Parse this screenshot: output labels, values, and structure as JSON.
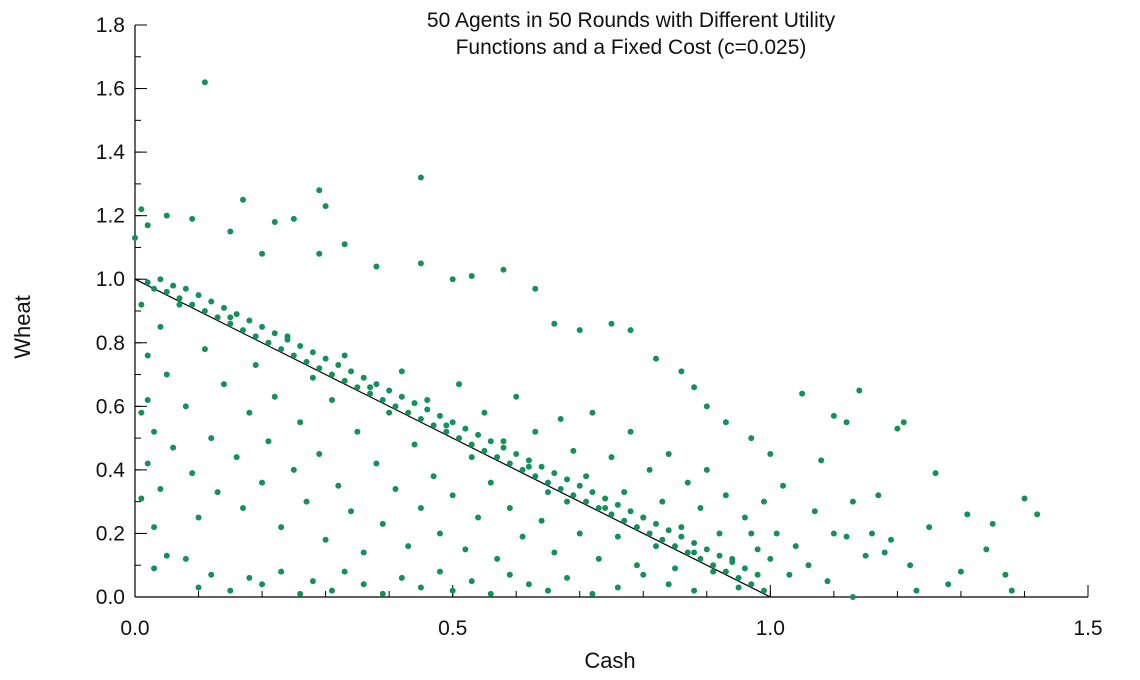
{
  "chart_data": {
    "type": "scatter",
    "title_lines": [
      "50 Agents in 50 Rounds with Different Utility",
      "Functions and a Fixed Cost (c=0.025)"
    ],
    "xlabel": "Cash",
    "ylabel": "Wheat",
    "xlim": [
      0,
      1.5
    ],
    "ylim": [
      0,
      1.8
    ],
    "x_ticks": [
      {
        "v": 0,
        "label": "0.0"
      },
      {
        "v": 0.5,
        "label": "0.5"
      },
      {
        "v": 1.0,
        "label": "1.0"
      },
      {
        "v": 1.5,
        "label": "1.5"
      }
    ],
    "y_ticks": [
      {
        "v": 0,
        "label": "0.0"
      },
      {
        "v": 0.2,
        "label": "0.2"
      },
      {
        "v": 0.4,
        "label": "0.4"
      },
      {
        "v": 0.6,
        "label": "0.6"
      },
      {
        "v": 0.8,
        "label": "0.8"
      },
      {
        "v": 1.0,
        "label": "1.0"
      },
      {
        "v": 1.2,
        "label": "1.2"
      },
      {
        "v": 1.4,
        "label": "1.4"
      },
      {
        "v": 1.6,
        "label": "1.6"
      },
      {
        "v": 1.8,
        "label": "1.8"
      }
    ],
    "x_minor_step": 0.1,
    "y_minor_step": 0.1,
    "grid": false,
    "point_color": "#14905a",
    "line_color": "#000000",
    "reference_line": [
      [
        0,
        1.0
      ],
      [
        1.0,
        0.0
      ]
    ],
    "points": [
      [
        0.11,
        1.62
      ],
      [
        0.45,
        1.32
      ],
      [
        0.29,
        1.28
      ],
      [
        0.3,
        1.23
      ],
      [
        0.17,
        1.25
      ],
      [
        0.01,
        1.22
      ],
      [
        0.0,
        1.13
      ],
      [
        0.02,
        1.17
      ],
      [
        0.05,
        1.2
      ],
      [
        0.09,
        1.19
      ],
      [
        0.22,
        1.18
      ],
      [
        0.25,
        1.19
      ],
      [
        0.33,
        1.11
      ],
      [
        0.15,
        1.15
      ],
      [
        0.2,
        1.08
      ],
      [
        0.29,
        1.08
      ],
      [
        0.38,
        1.04
      ],
      [
        0.45,
        1.05
      ],
      [
        0.5,
        1.0
      ],
      [
        0.53,
        1.01
      ],
      [
        0.58,
        1.03
      ],
      [
        0.63,
        0.97
      ],
      [
        0.66,
        0.86
      ],
      [
        0.7,
        0.84
      ],
      [
        0.75,
        0.86
      ],
      [
        0.78,
        0.84
      ],
      [
        0.82,
        0.75
      ],
      [
        0.86,
        0.71
      ],
      [
        0.88,
        0.66
      ],
      [
        0.9,
        0.6
      ],
      [
        0.93,
        0.55
      ],
      [
        0.97,
        0.5
      ],
      [
        1.0,
        0.45
      ],
      [
        1.05,
        0.64
      ],
      [
        1.08,
        0.43
      ],
      [
        1.1,
        0.57
      ],
      [
        1.12,
        0.55
      ],
      [
        1.14,
        0.65
      ],
      [
        1.17,
        0.32
      ],
      [
        1.2,
        0.53
      ],
      [
        1.21,
        0.55
      ],
      [
        1.26,
        0.39
      ],
      [
        1.31,
        0.26
      ],
      [
        1.35,
        0.23
      ],
      [
        1.37,
        0.07
      ],
      [
        1.4,
        0.31
      ],
      [
        1.42,
        0.26
      ],
      [
        1.3,
        0.08
      ],
      [
        1.25,
        0.22
      ],
      [
        1.22,
        0.1
      ],
      [
        1.18,
        0.14
      ],
      [
        1.15,
        0.13
      ],
      [
        1.12,
        0.19
      ],
      [
        1.09,
        0.05
      ],
      [
        1.06,
        0.1
      ],
      [
        1.03,
        0.07
      ],
      [
        1.0,
        0.12
      ],
      [
        0.97,
        0.2
      ],
      [
        0.95,
        0.03
      ],
      [
        1.38,
        0.02
      ],
      [
        1.34,
        0.15
      ],
      [
        1.28,
        0.04
      ],
      [
        1.23,
        0.02
      ],
      [
        1.13,
        0.0
      ],
      [
        0.03,
        0.09
      ],
      [
        0.05,
        0.13
      ],
      [
        0.08,
        0.12
      ],
      [
        0.1,
        0.03
      ],
      [
        0.12,
        0.07
      ],
      [
        0.15,
        0.02
      ],
      [
        0.18,
        0.06
      ],
      [
        0.2,
        0.04
      ],
      [
        0.23,
        0.08
      ],
      [
        0.26,
        0.01
      ],
      [
        0.28,
        0.05
      ],
      [
        0.31,
        0.02
      ],
      [
        0.33,
        0.08
      ],
      [
        0.36,
        0.04
      ],
      [
        0.39,
        0.01
      ],
      [
        0.42,
        0.06
      ],
      [
        0.45,
        0.03
      ],
      [
        0.48,
        0.08
      ],
      [
        0.5,
        0.02
      ],
      [
        0.53,
        0.05
      ],
      [
        0.56,
        0.01
      ],
      [
        0.59,
        0.07
      ],
      [
        0.62,
        0.04
      ],
      [
        0.65,
        0.02
      ],
      [
        0.68,
        0.06
      ],
      [
        0.72,
        0.01
      ],
      [
        0.76,
        0.03
      ],
      [
        0.8,
        0.07
      ],
      [
        0.84,
        0.04
      ],
      [
        0.88,
        0.02
      ],
      [
        0.01,
        0.92
      ],
      [
        0.02,
        0.76
      ],
      [
        0.01,
        0.58
      ],
      [
        0.02,
        0.42
      ],
      [
        0.01,
        0.31
      ],
      [
        0.03,
        0.22
      ],
      [
        0.02,
        0.62
      ],
      [
        0.03,
        0.52
      ],
      [
        0.04,
        0.85
      ],
      [
        0.05,
        0.7
      ],
      [
        0.04,
        0.34
      ],
      [
        0.06,
        0.47
      ],
      [
        0.07,
        0.92
      ],
      [
        0.08,
        0.6
      ],
      [
        0.09,
        0.39
      ],
      [
        0.1,
        0.25
      ],
      [
        0.11,
        0.78
      ],
      [
        0.12,
        0.5
      ],
      [
        0.13,
        0.33
      ],
      [
        0.14,
        0.67
      ],
      [
        0.15,
        0.88
      ],
      [
        0.16,
        0.44
      ],
      [
        0.17,
        0.28
      ],
      [
        0.18,
        0.58
      ],
      [
        0.19,
        0.73
      ],
      [
        0.2,
        0.36
      ],
      [
        0.21,
        0.49
      ],
      [
        0.22,
        0.63
      ],
      [
        0.23,
        0.22
      ],
      [
        0.24,
        0.82
      ],
      [
        0.25,
        0.4
      ],
      [
        0.26,
        0.55
      ],
      [
        0.27,
        0.3
      ],
      [
        0.28,
        0.69
      ],
      [
        0.29,
        0.45
      ],
      [
        0.3,
        0.18
      ],
      [
        0.31,
        0.62
      ],
      [
        0.32,
        0.35
      ],
      [
        0.33,
        0.76
      ],
      [
        0.34,
        0.27
      ],
      [
        0.35,
        0.52
      ],
      [
        0.36,
        0.14
      ],
      [
        0.37,
        0.66
      ],
      [
        0.38,
        0.42
      ],
      [
        0.39,
        0.23
      ],
      [
        0.4,
        0.58
      ],
      [
        0.41,
        0.34
      ],
      [
        0.42,
        0.71
      ],
      [
        0.43,
        0.16
      ],
      [
        0.44,
        0.48
      ],
      [
        0.45,
        0.28
      ],
      [
        0.46,
        0.62
      ],
      [
        0.47,
        0.38
      ],
      [
        0.48,
        0.2
      ],
      [
        0.49,
        0.54
      ],
      [
        0.5,
        0.32
      ],
      [
        0.51,
        0.67
      ],
      [
        0.52,
        0.15
      ],
      [
        0.53,
        0.44
      ],
      [
        0.54,
        0.25
      ],
      [
        0.55,
        0.58
      ],
      [
        0.56,
        0.36
      ],
      [
        0.57,
        0.12
      ],
      [
        0.58,
        0.49
      ],
      [
        0.59,
        0.28
      ],
      [
        0.6,
        0.63
      ],
      [
        0.61,
        0.19
      ],
      [
        0.62,
        0.41
      ],
      [
        0.63,
        0.52
      ],
      [
        0.64,
        0.24
      ],
      [
        0.65,
        0.33
      ],
      [
        0.66,
        0.14
      ],
      [
        0.67,
        0.56
      ],
      [
        0.68,
        0.3
      ],
      [
        0.69,
        0.46
      ],
      [
        0.7,
        0.2
      ],
      [
        0.71,
        0.38
      ],
      [
        0.72,
        0.58
      ],
      [
        0.73,
        0.12
      ],
      [
        0.74,
        0.28
      ],
      [
        0.75,
        0.44
      ],
      [
        0.76,
        0.19
      ],
      [
        0.77,
        0.33
      ],
      [
        0.78,
        0.52
      ],
      [
        0.79,
        0.1
      ],
      [
        0.8,
        0.25
      ],
      [
        0.81,
        0.4
      ],
      [
        0.82,
        0.16
      ],
      [
        0.83,
        0.3
      ],
      [
        0.84,
        0.45
      ],
      [
        0.85,
        0.09
      ],
      [
        0.86,
        0.22
      ],
      [
        0.87,
        0.36
      ],
      [
        0.88,
        0.14
      ],
      [
        0.89,
        0.28
      ],
      [
        0.9,
        0.4
      ],
      [
        0.91,
        0.08
      ],
      [
        0.92,
        0.2
      ],
      [
        0.93,
        0.32
      ],
      [
        0.94,
        0.12
      ],
      [
        0.96,
        0.25
      ],
      [
        0.98,
        0.15
      ],
      [
        0.99,
        0.3
      ],
      [
        1.01,
        0.2
      ],
      [
        1.02,
        0.35
      ],
      [
        1.04,
        0.16
      ],
      [
        1.07,
        0.27
      ],
      [
        1.1,
        0.2
      ],
      [
        1.13,
        0.3
      ],
      [
        1.16,
        0.2
      ],
      [
        1.19,
        0.18
      ],
      [
        0.02,
        0.99
      ],
      [
        0.03,
        0.97
      ],
      [
        0.05,
        0.96
      ],
      [
        0.07,
        0.94
      ],
      [
        0.09,
        0.92
      ],
      [
        0.11,
        0.9
      ],
      [
        0.13,
        0.88
      ],
      [
        0.15,
        0.86
      ],
      [
        0.17,
        0.84
      ],
      [
        0.19,
        0.82
      ],
      [
        0.21,
        0.8
      ],
      [
        0.23,
        0.78
      ],
      [
        0.25,
        0.76
      ],
      [
        0.27,
        0.74
      ],
      [
        0.29,
        0.72
      ],
      [
        0.31,
        0.7
      ],
      [
        0.33,
        0.68
      ],
      [
        0.35,
        0.66
      ],
      [
        0.37,
        0.64
      ],
      [
        0.39,
        0.62
      ],
      [
        0.41,
        0.6
      ],
      [
        0.43,
        0.58
      ],
      [
        0.45,
        0.56
      ],
      [
        0.47,
        0.54
      ],
      [
        0.49,
        0.52
      ],
      [
        0.51,
        0.5
      ],
      [
        0.53,
        0.48
      ],
      [
        0.55,
        0.46
      ],
      [
        0.57,
        0.44
      ],
      [
        0.59,
        0.42
      ],
      [
        0.61,
        0.4
      ],
      [
        0.63,
        0.38
      ],
      [
        0.65,
        0.36
      ],
      [
        0.67,
        0.34
      ],
      [
        0.69,
        0.32
      ],
      [
        0.71,
        0.3
      ],
      [
        0.73,
        0.28
      ],
      [
        0.75,
        0.26
      ],
      [
        0.77,
        0.24
      ],
      [
        0.79,
        0.22
      ],
      [
        0.81,
        0.2
      ],
      [
        0.83,
        0.18
      ],
      [
        0.85,
        0.16
      ],
      [
        0.87,
        0.14
      ],
      [
        0.89,
        0.12
      ],
      [
        0.91,
        0.1
      ],
      [
        0.93,
        0.08
      ],
      [
        0.95,
        0.06
      ],
      [
        0.97,
        0.04
      ],
      [
        0.99,
        0.02
      ],
      [
        0.04,
        1.0
      ],
      [
        0.06,
        0.98
      ],
      [
        0.08,
        0.97
      ],
      [
        0.1,
        0.95
      ],
      [
        0.12,
        0.93
      ],
      [
        0.14,
        0.91
      ],
      [
        0.16,
        0.89
      ],
      [
        0.18,
        0.87
      ],
      [
        0.2,
        0.85
      ],
      [
        0.22,
        0.83
      ],
      [
        0.24,
        0.81
      ],
      [
        0.26,
        0.79
      ],
      [
        0.28,
        0.77
      ],
      [
        0.3,
        0.75
      ],
      [
        0.32,
        0.73
      ],
      [
        0.34,
        0.71
      ],
      [
        0.36,
        0.69
      ],
      [
        0.38,
        0.67
      ],
      [
        0.4,
        0.65
      ],
      [
        0.42,
        0.63
      ],
      [
        0.44,
        0.61
      ],
      [
        0.46,
        0.59
      ],
      [
        0.48,
        0.57
      ],
      [
        0.5,
        0.55
      ],
      [
        0.52,
        0.53
      ],
      [
        0.54,
        0.51
      ],
      [
        0.56,
        0.49
      ],
      [
        0.58,
        0.47
      ],
      [
        0.6,
        0.45
      ],
      [
        0.62,
        0.43
      ],
      [
        0.64,
        0.41
      ],
      [
        0.66,
        0.39
      ],
      [
        0.68,
        0.37
      ],
      [
        0.7,
        0.35
      ],
      [
        0.72,
        0.33
      ],
      [
        0.74,
        0.31
      ],
      [
        0.76,
        0.29
      ],
      [
        0.78,
        0.27
      ],
      [
        0.8,
        0.25
      ],
      [
        0.82,
        0.23
      ],
      [
        0.84,
        0.21
      ],
      [
        0.86,
        0.19
      ],
      [
        0.88,
        0.17
      ],
      [
        0.9,
        0.15
      ],
      [
        0.92,
        0.13
      ],
      [
        0.94,
        0.11
      ],
      [
        0.96,
        0.09
      ],
      [
        0.98,
        0.07
      ]
    ]
  }
}
